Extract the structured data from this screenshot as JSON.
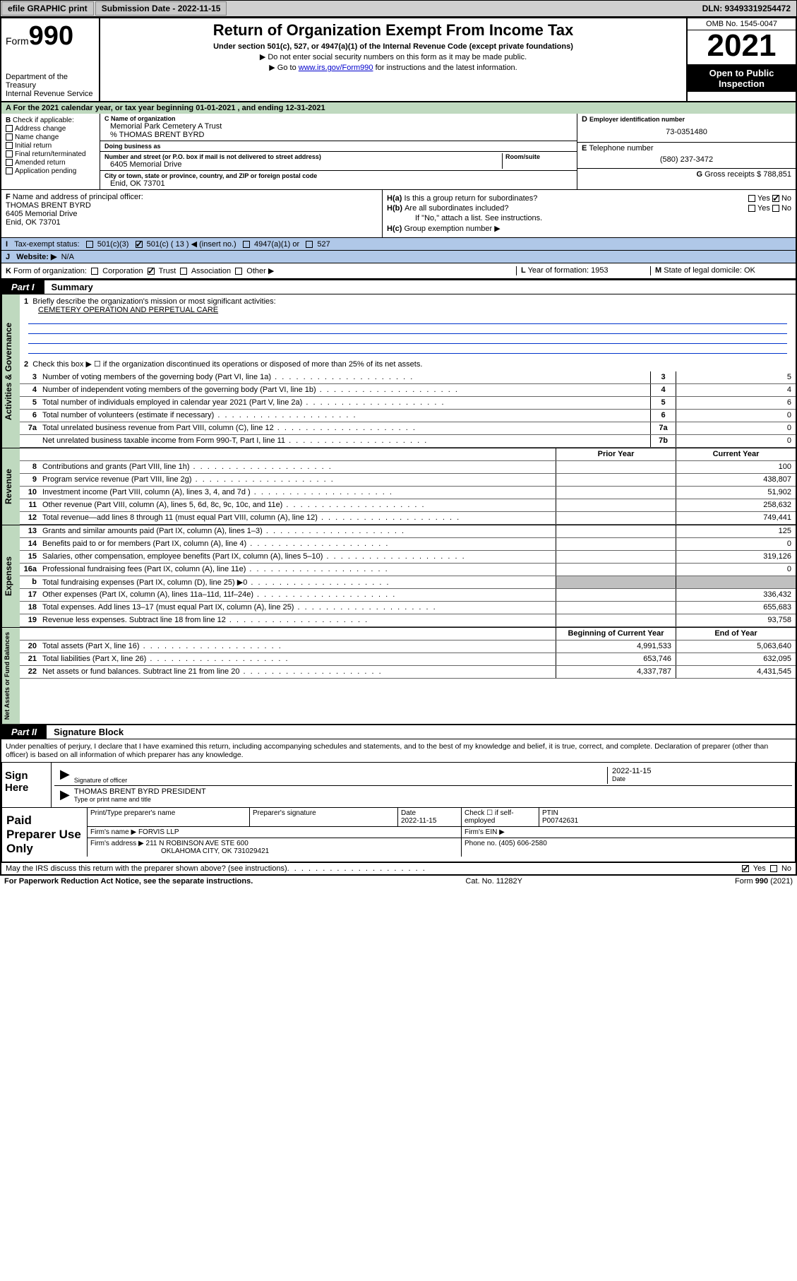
{
  "topbar": {
    "efile": "efile GRAPHIC print",
    "submission_label": "Submission Date - 2022-11-15",
    "dln": "DLN: 93493319254472"
  },
  "header": {
    "form_word": "Form",
    "form_num": "990",
    "dept": "Department of the Treasury",
    "irs": "Internal Revenue Service",
    "title": "Return of Organization Exempt From Income Tax",
    "subtitle": "Under section 501(c), 527, or 4947(a)(1) of the Internal Revenue Code (except private foundations)",
    "note1": "Do not enter social security numbers on this form as it may be made public.",
    "note2_pre": "Go to ",
    "note2_link": "www.irs.gov/Form990",
    "note2_post": " for instructions and the latest information.",
    "omb": "OMB No. 1545-0047",
    "year": "2021",
    "open": "Open to Public Inspection"
  },
  "A": {
    "text": "For the 2021 calendar year, or tax year beginning 01-01-2021   , and ending 12-31-2021"
  },
  "B": {
    "label": "Check if applicable:",
    "items": [
      "Address change",
      "Name change",
      "Initial return",
      "Final return/terminated",
      "Amended return",
      "Application pending"
    ]
  },
  "C": {
    "name_label": "Name of organization",
    "name": "Memorial Park Cemetery A Trust",
    "care_of": "% THOMAS BRENT BYRD",
    "dba_label": "Doing business as",
    "street_label": "Number and street (or P.O. box if mail is not delivered to street address)",
    "room_label": "Room/suite",
    "street": "6405 Memorial Drive",
    "city_label": "City or town, state or province, country, and ZIP or foreign postal code",
    "city": "Enid, OK  73701"
  },
  "D": {
    "label": "Employer identification number",
    "val": "73-0351480"
  },
  "E": {
    "label": "Telephone number",
    "val": "(580) 237-3472"
  },
  "G": {
    "label": "Gross receipts $",
    "val": "788,851"
  },
  "F": {
    "label": "Name and address of principal officer:",
    "name": "THOMAS BRENT BYRD",
    "addr1": "6405 Memorial Drive",
    "addr2": "Enid, OK  73701"
  },
  "H": {
    "a": "Is this a group return for subordinates?",
    "b": "Are all subordinates included?",
    "b_note": "If \"No,\" attach a list. See instructions.",
    "c": "Group exemption number ▶",
    "yes": "Yes",
    "no": "No"
  },
  "I": {
    "label": "Tax-exempt status:",
    "o1": "501(c)(3)",
    "o2": "501(c) ( 13 ) ◀ (insert no.)",
    "o3": "4947(a)(1) or",
    "o4": "527"
  },
  "J": {
    "label": "Website: ▶",
    "val": "N/A"
  },
  "K": {
    "label": "Form of organization:",
    "opts": [
      "Corporation",
      "Trust",
      "Association",
      "Other ▶"
    ]
  },
  "L": {
    "label": "Year of formation:",
    "val": "1953"
  },
  "M": {
    "label": "State of legal domicile:",
    "val": "OK"
  },
  "part1": {
    "tag": "Part I",
    "title": "Summary"
  },
  "summary": {
    "q1": "Briefly describe the organization's mission or most significant activities:",
    "mission": "CEMETERY OPERATION AND PERPETUAL CARE",
    "q2": "Check this box ▶ ☐  if the organization discontinued its operations or disposed of more than 25% of its net assets.",
    "lines_gov": [
      {
        "n": "3",
        "t": "Number of voting members of the governing body (Part VI, line 1a)",
        "box": "3",
        "v": "5"
      },
      {
        "n": "4",
        "t": "Number of independent voting members of the governing body (Part VI, line 1b)",
        "box": "4",
        "v": "4"
      },
      {
        "n": "5",
        "t": "Total number of individuals employed in calendar year 2021 (Part V, line 2a)",
        "box": "5",
        "v": "6"
      },
      {
        "n": "6",
        "t": "Total number of volunteers (estimate if necessary)",
        "box": "6",
        "v": "0"
      },
      {
        "n": "7a",
        "t": "Total unrelated business revenue from Part VIII, column (C), line 12",
        "box": "7a",
        "v": "0"
      },
      {
        "n": "",
        "t": "Net unrelated business taxable income from Form 990-T, Part I, line 11",
        "box": "7b",
        "v": "0"
      }
    ],
    "prior": "Prior Year",
    "current": "Current Year",
    "lines_rev": [
      {
        "n": "8",
        "t": "Contributions and grants (Part VIII, line 1h)",
        "p": "",
        "c": "100"
      },
      {
        "n": "9",
        "t": "Program service revenue (Part VIII, line 2g)",
        "p": "",
        "c": "438,807"
      },
      {
        "n": "10",
        "t": "Investment income (Part VIII, column (A), lines 3, 4, and 7d )",
        "p": "",
        "c": "51,902"
      },
      {
        "n": "11",
        "t": "Other revenue (Part VIII, column (A), lines 5, 6d, 8c, 9c, 10c, and 11e)",
        "p": "",
        "c": "258,632"
      },
      {
        "n": "12",
        "t": "Total revenue—add lines 8 through 11 (must equal Part VIII, column (A), line 12)",
        "p": "",
        "c": "749,441"
      }
    ],
    "lines_exp": [
      {
        "n": "13",
        "t": "Grants and similar amounts paid (Part IX, column (A), lines 1–3)",
        "p": "",
        "c": "125"
      },
      {
        "n": "14",
        "t": "Benefits paid to or for members (Part IX, column (A), line 4)",
        "p": "",
        "c": "0"
      },
      {
        "n": "15",
        "t": "Salaries, other compensation, employee benefits (Part IX, column (A), lines 5–10)",
        "p": "",
        "c": "319,126"
      },
      {
        "n": "16a",
        "t": "Professional fundraising fees (Part IX, column (A), line 11e)",
        "p": "",
        "c": "0"
      },
      {
        "n": "b",
        "t": "Total fundraising expenses (Part IX, column (D), line 25) ▶0",
        "p": "shade",
        "c": "shade"
      },
      {
        "n": "17",
        "t": "Other expenses (Part IX, column (A), lines 11a–11d, 11f–24e)",
        "p": "",
        "c": "336,432"
      },
      {
        "n": "18",
        "t": "Total expenses. Add lines 13–17 (must equal Part IX, column (A), line 25)",
        "p": "",
        "c": "655,683"
      },
      {
        "n": "19",
        "t": "Revenue less expenses. Subtract line 18 from line 12",
        "p": "",
        "c": "93,758"
      }
    ],
    "begin": "Beginning of Current Year",
    "end": "End of Year",
    "lines_net": [
      {
        "n": "20",
        "t": "Total assets (Part X, line 16)",
        "p": "4,991,533",
        "c": "5,063,640"
      },
      {
        "n": "21",
        "t": "Total liabilities (Part X, line 26)",
        "p": "653,746",
        "c": "632,095"
      },
      {
        "n": "22",
        "t": "Net assets or fund balances. Subtract line 21 from line 20",
        "p": "4,337,787",
        "c": "4,431,545"
      }
    ],
    "vlabels": {
      "gov": "Activities & Governance",
      "rev": "Revenue",
      "exp": "Expenses",
      "net": "Net Assets or Fund Balances"
    }
  },
  "part2": {
    "tag": "Part II",
    "title": "Signature Block"
  },
  "sig": {
    "perjury": "Under penalties of perjury, I declare that I have examined this return, including accompanying schedules and statements, and to the best of my knowledge and belief, it is true, correct, and complete. Declaration of preparer (other than officer) is based on all information of which preparer has any knowledge.",
    "sign_here": "Sign Here",
    "sig_officer": "Signature of officer",
    "date_label": "Date",
    "date": "2022-11-15",
    "name_title": "THOMAS BRENT BYRD  PRESIDENT",
    "type_label": "Type or print name and title"
  },
  "prep": {
    "label": "Paid Preparer Use Only",
    "h1": "Print/Type preparer's name",
    "h2": "Preparer's signature",
    "h3": "Date",
    "date": "2022-11-15",
    "h4": "Check ☐ if self-employed",
    "h5": "PTIN",
    "ptin": "P00742631",
    "firm_label": "Firm's name    ▶",
    "firm": "FORVIS LLP",
    "ein_label": "Firm's EIN ▶",
    "addr_label": "Firm's address ▶",
    "addr1": "211 N ROBINSON AVE STE 600",
    "addr2": "OKLAHOMA CITY, OK  731029421",
    "phone_label": "Phone no.",
    "phone": "(405) 606-2580"
  },
  "footer": {
    "discuss": "May the IRS discuss this return with the preparer shown above? (see instructions)",
    "yes": "Yes",
    "no": "No",
    "paperwork": "For Paperwork Reduction Act Notice, see the separate instructions.",
    "cat": "Cat. No. 11282Y",
    "formpg": "Form 990 (2021)"
  }
}
